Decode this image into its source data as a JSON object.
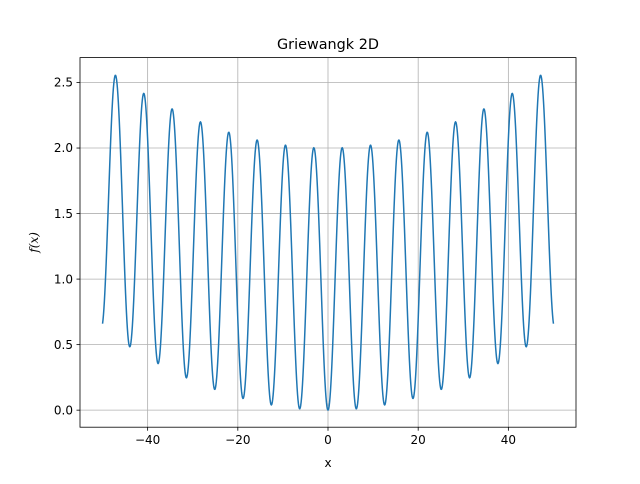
{
  "chart_data": {
    "type": "line",
    "title": "Griewangk 2D",
    "xlabel": "x",
    "ylabel": "f(x)",
    "xlim": [
      -55,
      55
    ],
    "ylim": [
      -0.13,
      2.69
    ],
    "grid": true,
    "xticks": [
      -40,
      -20,
      0,
      20,
      40
    ],
    "xtick_labels": [
      "−40",
      "−20",
      "0",
      "20",
      "40"
    ],
    "yticks": [
      0.0,
      0.5,
      1.0,
      1.5,
      2.0,
      2.5
    ],
    "ytick_labels": [
      "0.0",
      "0.5",
      "1.0",
      "1.5",
      "2.0",
      "2.5"
    ],
    "series": [
      {
        "function": "1 + x^2/4000 - cos(x)",
        "x_range": [
          -50,
          50
        ],
        "samples": 1000,
        "color": "#1f77b4"
      }
    ]
  }
}
